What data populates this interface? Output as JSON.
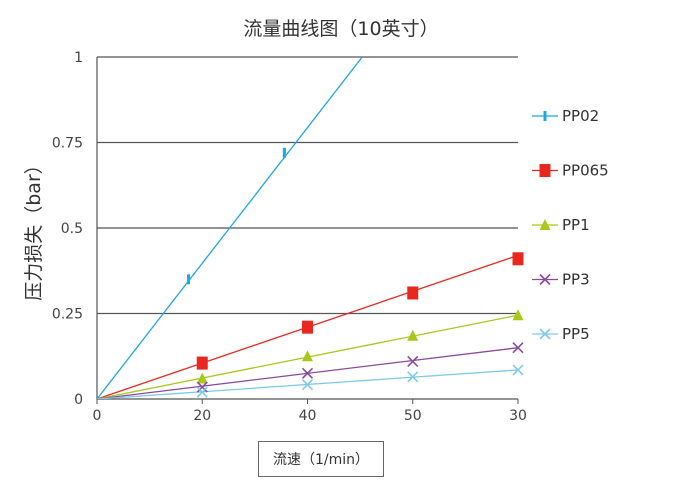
{
  "chart_data": {
    "type": "line",
    "title": "流量曲线图（10英寸）",
    "xlabel": "流速（1/min）",
    "ylabel": "压力损失（bar）",
    "x_ticks": [
      "0",
      "20",
      "40",
      "50",
      "30"
    ],
    "y_ticks": [
      "0",
      "0.25",
      "0.5",
      "0.75",
      "1"
    ],
    "ylim": [
      0,
      1
    ],
    "grid": "horizontal",
    "legend_position": "right",
    "series": [
      {
        "name": "PP02",
        "color": "#1ea7e1",
        "marker": "bar",
        "line_x": [
          0,
          2.52
        ],
        "line_y": [
          0,
          1.0
        ],
        "marker_x": [
          0.87,
          1.78
        ],
        "marker_y": [
          0.35,
          0.72
        ]
      },
      {
        "name": "PP065",
        "color": "#e8281e",
        "marker": "square",
        "line_x": [
          0,
          4.0
        ],
        "line_y": [
          0,
          0.42
        ],
        "marker_x": [
          1.0,
          2.0,
          3.0,
          4.0
        ],
        "marker_y": [
          0.105,
          0.21,
          0.31,
          0.41
        ]
      },
      {
        "name": "PP1",
        "color": "#a8c81a",
        "marker": "triangle",
        "line_x": [
          0,
          4.0
        ],
        "line_y": [
          0,
          0.245
        ],
        "marker_x": [
          1.0,
          2.0,
          3.0,
          4.0
        ],
        "marker_y": [
          0.06,
          0.125,
          0.185,
          0.245
        ]
      },
      {
        "name": "PP3",
        "color": "#8a4a9c",
        "marker": "x",
        "line_x": [
          0,
          4.0
        ],
        "line_y": [
          0,
          0.15
        ],
        "marker_x": [
          1.0,
          2.0,
          3.0,
          4.0
        ],
        "marker_y": [
          0.035,
          0.075,
          0.11,
          0.15
        ]
      },
      {
        "name": "PP5",
        "color": "#7ec9e8",
        "marker": "x",
        "line_x": [
          0,
          4.0
        ],
        "line_y": [
          0,
          0.085
        ],
        "marker_x": [
          1.0,
          2.0,
          3.0,
          4.0
        ],
        "marker_y": [
          0.02,
          0.042,
          0.065,
          0.085
        ]
      }
    ]
  }
}
